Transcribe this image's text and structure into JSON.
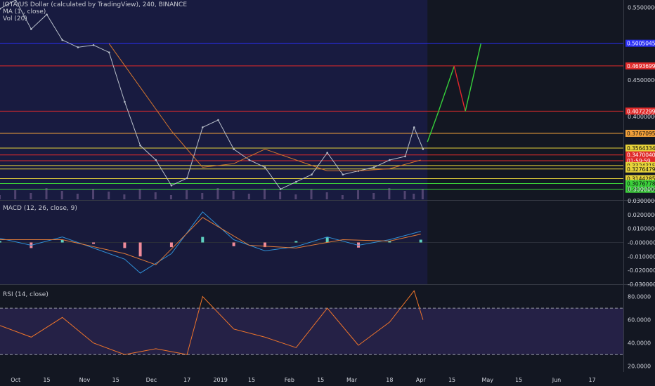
{
  "legend": {
    "symbol": "IOTA/US Dollar (calculated by TradingView), 240, BINANCE",
    "ma": "MA (1 , close)",
    "vol": "Vol (20)",
    "macd": "MACD (12, 26, close, 9)",
    "rsi": "RSI (14, close)"
  },
  "colors": {
    "background": "#131722",
    "shade": "#1e1f5a",
    "rsi_band": "#2a2450",
    "up": "#b7bec9",
    "ma": "#d5762d",
    "macd_line": "#2f8fd6",
    "signal_line": "#e07b39",
    "hist_up": "#5fd0c0",
    "hist_down": "#f08b9a",
    "rsi_line": "#f0752a",
    "blue_line": "#2a2ff5",
    "red_line": "#e02b2b",
    "yellow_line": "#e6d23a",
    "green_line": "#3bd23b",
    "projection_green": "#36d13b",
    "projection_red": "#e3272b"
  },
  "chart_data": [
    {
      "type": "line",
      "panel": "price",
      "x_ticks": [
        "Oct",
        "15",
        "Nov",
        "15",
        "Dec",
        "17",
        "2019",
        "15",
        "Feb",
        "15",
        "Mar",
        "18",
        "Apr",
        "15",
        "May",
        "15",
        "Jun",
        "17"
      ],
      "y_ticks": [
        "0.55000000",
        "0.45000000",
        "0.40000000",
        "0.30000000"
      ],
      "ylim": [
        0.285,
        0.56
      ],
      "price_series": [
        {
          "date": "2018-09-24",
          "close": 0.548
        },
        {
          "date": "2018-10-01",
          "close": 0.56
        },
        {
          "date": "2018-10-08",
          "close": 0.52
        },
        {
          "date": "2018-10-15",
          "close": 0.54
        },
        {
          "date": "2018-10-22",
          "close": 0.505
        },
        {
          "date": "2018-10-29",
          "close": 0.495
        },
        {
          "date": "2018-11-05",
          "close": 0.498
        },
        {
          "date": "2018-11-12",
          "close": 0.488
        },
        {
          "date": "2018-11-19",
          "close": 0.42
        },
        {
          "date": "2018-11-26",
          "close": 0.36
        },
        {
          "date": "2018-12-03",
          "close": 0.34
        },
        {
          "date": "2018-12-10",
          "close": 0.305
        },
        {
          "date": "2018-12-17",
          "close": 0.315
        },
        {
          "date": "2018-12-24",
          "close": 0.385
        },
        {
          "date": "2018-12-31",
          "close": 0.395
        },
        {
          "date": "2019-01-07",
          "close": 0.355
        },
        {
          "date": "2019-01-14",
          "close": 0.34
        },
        {
          "date": "2019-01-21",
          "close": 0.33
        },
        {
          "date": "2019-01-28",
          "close": 0.3
        },
        {
          "date": "2019-02-04",
          "close": 0.31
        },
        {
          "date": "2019-02-11",
          "close": 0.32
        },
        {
          "date": "2019-02-18",
          "close": 0.35
        },
        {
          "date": "2019-02-25",
          "close": 0.32
        },
        {
          "date": "2019-03-04",
          "close": 0.325
        },
        {
          "date": "2019-03-11",
          "close": 0.33
        },
        {
          "date": "2019-03-18",
          "close": 0.34
        },
        {
          "date": "2019-03-25",
          "close": 0.345
        },
        {
          "date": "2019-03-29",
          "close": 0.385
        },
        {
          "date": "2019-04-02",
          "close": 0.355
        }
      ],
      "ma_series": [
        {
          "date": "2018-11-12",
          "value": 0.5
        },
        {
          "date": "2018-11-26",
          "value": 0.44
        },
        {
          "date": "2018-12-10",
          "value": 0.38
        },
        {
          "date": "2018-12-24",
          "value": 0.33
        },
        {
          "date": "2019-01-07",
          "value": 0.335
        },
        {
          "date": "2019-01-21",
          "value": 0.355
        },
        {
          "date": "2019-02-04",
          "value": 0.34
        },
        {
          "date": "2019-02-18",
          "value": 0.325
        },
        {
          "date": "2019-03-04",
          "value": 0.325
        },
        {
          "date": "2019-03-18",
          "value": 0.328
        },
        {
          "date": "2019-04-01",
          "value": 0.34
        }
      ],
      "horizontal_levels": [
        {
          "value": 0.50050457,
          "label": "0.50050457",
          "color": "#2a2ff5"
        },
        {
          "value": 0.46936997,
          "label": "0.46936997",
          "color": "#e02b2b"
        },
        {
          "value": 0.40722999,
          "label": "0.40722999",
          "color": "#e02b2b"
        },
        {
          "value": 0.3767095,
          "label": "0.37670950",
          "color": "#f2a03a"
        },
        {
          "value": 0.35643349,
          "label": "0.35643349",
          "color": "#e6d23a"
        },
        {
          "value": 0.347004,
          "label": "0.34700400",
          "color": "#e02b2b"
        },
        {
          "value": 0.339,
          "label": "01:59:59",
          "color": "#e02b2b"
        },
        {
          "value": 0.33243156,
          "label": "0.33243156",
          "color": "#e6d23a"
        },
        {
          "value": 0.32764791,
          "label": "0.32764791",
          "color": "#e6d23a"
        },
        {
          "value": 0.31442859,
          "label": "0.31442859",
          "color": "#e6d23a"
        },
        {
          "value": 0.30767789,
          "label": "0.30767789",
          "color": "#3bd23b"
        },
        {
          "value": 0.29977961,
          "label": "0.29977961",
          "color": "#3bd23b"
        }
      ],
      "projection": [
        {
          "date": "2019-04-04",
          "value": 0.365
        },
        {
          "date": "2019-04-09",
          "value": 0.407
        },
        {
          "date": "2019-04-16",
          "value": 0.469
        },
        {
          "date": "2019-04-21",
          "value": 0.407
        },
        {
          "date": "2019-04-28",
          "value": 0.5
        }
      ]
    },
    {
      "type": "line",
      "panel": "macd",
      "y_ticks": [
        "0.03000000",
        "0.02000000",
        "0.01000000",
        "-0.00000000",
        "-0.01000000",
        "-0.02000000",
        "-0.03000000"
      ],
      "ylim": [
        -0.03,
        0.03
      ],
      "macd_series": [
        {
          "date": "2018-09-24",
          "value": 0.003
        },
        {
          "date": "2018-10-08",
          "value": -0.002
        },
        {
          "date": "2018-10-22",
          "value": 0.004
        },
        {
          "date": "2018-11-05",
          "value": -0.004
        },
        {
          "date": "2018-11-19",
          "value": -0.012
        },
        {
          "date": "2018-11-26",
          "value": -0.022
        },
        {
          "date": "2018-12-10",
          "value": -0.008
        },
        {
          "date": "2018-12-24",
          "value": 0.022
        },
        {
          "date": "2019-01-07",
          "value": 0.002
        },
        {
          "date": "2019-01-21",
          "value": -0.006
        },
        {
          "date": "2019-02-04",
          "value": -0.003
        },
        {
          "date": "2019-02-18",
          "value": 0.004
        },
        {
          "date": "2019-03-04",
          "value": -0.002
        },
        {
          "date": "2019-03-18",
          "value": 0.002
        },
        {
          "date": "2019-04-01",
          "value": 0.008
        }
      ],
      "signal_series": [
        {
          "date": "2018-09-24",
          "value": 0.002
        },
        {
          "date": "2018-10-22",
          "value": 0.002
        },
        {
          "date": "2018-11-19",
          "value": -0.008
        },
        {
          "date": "2018-12-03",
          "value": -0.016
        },
        {
          "date": "2018-12-24",
          "value": 0.018
        },
        {
          "date": "2019-01-14",
          "value": -0.002
        },
        {
          "date": "2019-02-04",
          "value": -0.004
        },
        {
          "date": "2019-02-25",
          "value": 0.002
        },
        {
          "date": "2019-03-18",
          "value": 0.001
        },
        {
          "date": "2019-04-01",
          "value": 0.006
        }
      ]
    },
    {
      "type": "line",
      "panel": "rsi",
      "y_ticks": [
        "80.0000",
        "60.0000",
        "40.0000",
        "20.0000"
      ],
      "ylim": [
        15,
        90
      ],
      "band": [
        30,
        70
      ],
      "series": [
        {
          "date": "2018-09-24",
          "value": 55
        },
        {
          "date": "2018-10-08",
          "value": 45
        },
        {
          "date": "2018-10-22",
          "value": 62
        },
        {
          "date": "2018-11-05",
          "value": 40
        },
        {
          "date": "2018-11-19",
          "value": 30
        },
        {
          "date": "2018-12-03",
          "value": 35
        },
        {
          "date": "2018-12-17",
          "value": 30
        },
        {
          "date": "2018-12-24",
          "value": 80
        },
        {
          "date": "2019-01-07",
          "value": 52
        },
        {
          "date": "2019-01-21",
          "value": 45
        },
        {
          "date": "2019-02-04",
          "value": 36
        },
        {
          "date": "2019-02-18",
          "value": 70
        },
        {
          "date": "2019-03-04",
          "value": 38
        },
        {
          "date": "2019-03-18",
          "value": 58
        },
        {
          "date": "2019-03-29",
          "value": 85
        },
        {
          "date": "2019-04-02",
          "value": 60
        }
      ]
    }
  ]
}
